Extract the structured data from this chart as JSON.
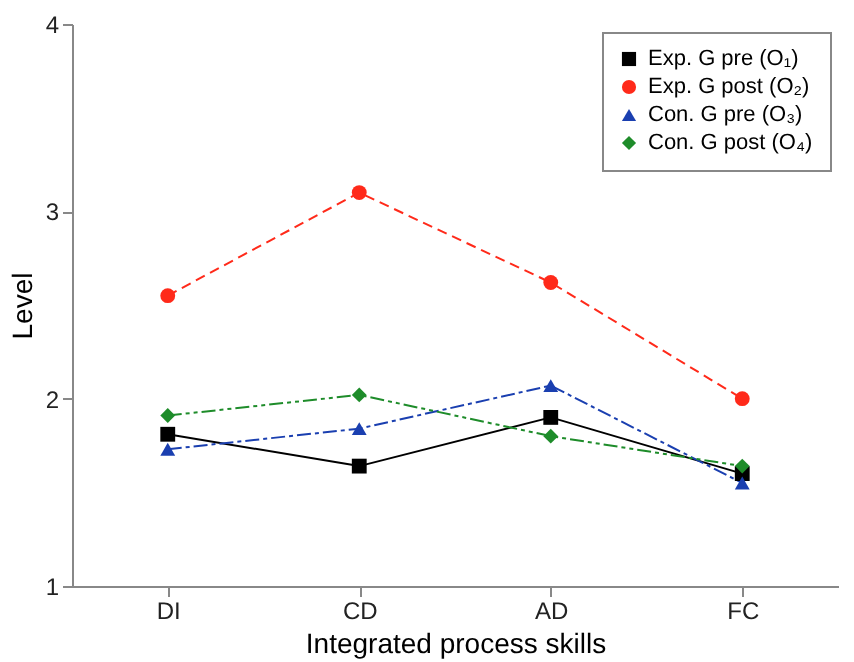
{
  "chart_data": {
    "type": "line",
    "xlabel": "Integrated process skills",
    "ylabel": "Level",
    "categories": [
      "DI",
      "CD",
      "AD",
      "FC"
    ],
    "ylim": [
      1,
      4
    ],
    "yticks": [
      1,
      2,
      3,
      4
    ],
    "grid": false,
    "legend": "top right",
    "series": [
      {
        "name": "Exp. G pre (O₁)",
        "color": "#000000",
        "marker": "square",
        "line_style": "solid",
        "values": [
          1.81,
          1.64,
          1.9,
          1.6
        ]
      },
      {
        "name": "Exp. G post (O₂)",
        "color": "#ff2a1a",
        "marker": "circle",
        "line_style": "dashed",
        "values": [
          2.55,
          3.1,
          2.62,
          2.0
        ]
      },
      {
        "name": "Con. G pre (O₃)",
        "color": "#1a3fb0",
        "marker": "triangle",
        "line_style": "dashdot",
        "values": [
          1.73,
          1.84,
          2.07,
          1.55
        ]
      },
      {
        "name": "Con. G post (O₄)",
        "color": "#1e8c2a",
        "marker": "diamond",
        "line_style": "dashdotdot",
        "values": [
          1.91,
          2.02,
          1.8,
          1.64
        ]
      }
    ]
  }
}
